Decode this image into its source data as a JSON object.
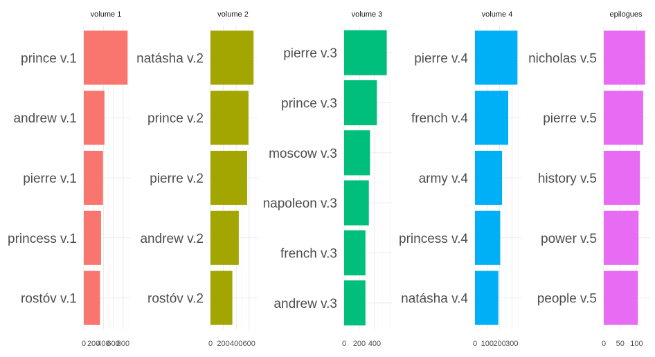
{
  "chart_data": [
    {
      "type": "bar",
      "orientation": "horizontal",
      "title": "volume 1",
      "color": "#F8766D",
      "categories": [
        "prince v.1",
        "andrew v.1",
        "pierre v.1",
        "princess v.1",
        "rostóv v.1"
      ],
      "values": [
        890,
        420,
        390,
        350,
        330
      ],
      "xlim": [
        0,
        900
      ],
      "ticks": [
        0,
        200,
        400,
        600,
        800
      ],
      "tick_labels": [
        "0",
        "200",
        "400",
        "600",
        "800"
      ],
      "xlabel": "",
      "ylabel": "",
      "grid": true,
      "legend": "none"
    },
    {
      "type": "bar",
      "orientation": "horizontal",
      "title": "volume 2",
      "color": "#A3A500",
      "categories": [
        "natásha v.2",
        "prince v.2",
        "pierre v.2",
        "andrew v.2",
        "rostóv v.2"
      ],
      "values": [
        670,
        590,
        570,
        440,
        340
      ],
      "xlim": [
        0,
        700
      ],
      "ticks": [
        0,
        200,
        400,
        600
      ],
      "tick_labels": [
        "0",
        "200",
        "400",
        "600"
      ],
      "xlabel": "",
      "ylabel": "",
      "grid": true,
      "legend": "none"
    },
    {
      "type": "bar",
      "orientation": "horizontal",
      "title": "volume 3",
      "color": "#00BF7D",
      "categories": [
        "pierre v.3",
        "prince v.3",
        "moscow v.3",
        "napoleon v.3",
        "french v.3",
        "andrew v.3"
      ],
      "values": [
        560,
        430,
        340,
        325,
        280,
        280
      ],
      "xlim": [
        0,
        600
      ],
      "ticks": [
        0,
        200,
        400
      ],
      "tick_labels": [
        "0",
        "200",
        "400"
      ],
      "xlabel": "",
      "ylabel": "",
      "grid": true,
      "legend": "none"
    },
    {
      "type": "bar",
      "orientation": "horizontal",
      "title": "volume 4",
      "color": "#00B0F6",
      "categories": [
        "pierre v.4",
        "french v.4",
        "army v.4",
        "princess v.4",
        "natásha v.4"
      ],
      "values": [
        345,
        270,
        220,
        205,
        190
      ],
      "xlim": [
        0,
        360
      ],
      "ticks": [
        0,
        100,
        200,
        300
      ],
      "tick_labels": [
        "0",
        "100",
        "200",
        "300"
      ],
      "xlabel": "",
      "ylabel": "",
      "grid": true,
      "legend": "none"
    },
    {
      "type": "bar",
      "orientation": "horizontal",
      "title": "epilogues",
      "color": "#E76BF3",
      "categories": [
        "nicholas v.5",
        "pierre v.5",
        "history v.5",
        "power v.5",
        "people v.5"
      ],
      "values": [
        126,
        120,
        110,
        106,
        104
      ],
      "xlim": [
        0,
        135
      ],
      "ticks": [
        0,
        50,
        100
      ],
      "tick_labels": [
        "0",
        "50",
        "100"
      ],
      "xlabel": "",
      "ylabel": "",
      "grid": true,
      "legend": "none"
    }
  ]
}
